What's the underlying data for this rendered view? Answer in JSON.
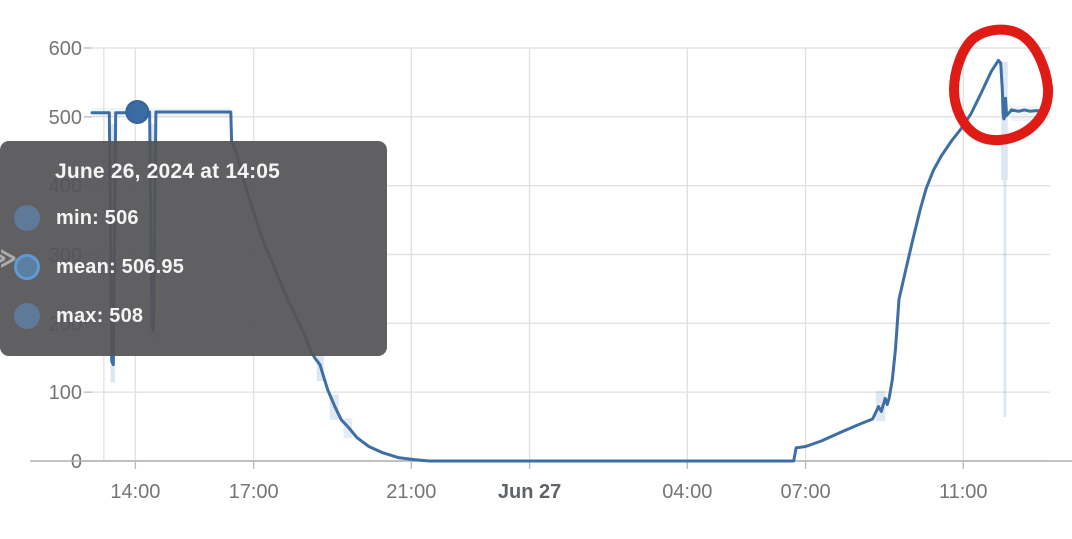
{
  "tooltip": {
    "title": "June 26, 2024 at 14:05",
    "rows": [
      {
        "series": "min",
        "value": "506",
        "text": "min: 506",
        "highlighted": false
      },
      {
        "series": "mean",
        "value": "506.95",
        "text": "mean: 506.95",
        "highlighted": true
      },
      {
        "series": "max",
        "value": "508",
        "text": "max: 508",
        "highlighted": false
      }
    ],
    "background": "#545456",
    "text_color": "#f4f4f4",
    "marker_color": "#5d82a8",
    "highlight_ring_color": "#5f9bd2"
  },
  "side_glyph": "≫",
  "colors": {
    "line": "#3d6fa6",
    "band": "#8fb0d2",
    "gridline": "#e2e2e2",
    "axis_line": "#b0b0b0",
    "tick": "#bdbdbd",
    "label": "#757575",
    "annotation_red": "#df1b16"
  },
  "chart_data": {
    "type": "line",
    "title": "",
    "xlabel": "",
    "ylabel": "",
    "legend_position": "tooltip-only",
    "grid": true,
    "x_axis": {
      "unit": "hours-since-Jun-26-00:00",
      "range_hours": [
        12.9,
        37.2
      ],
      "extra_gridline_t": 13.2,
      "ticks": [
        {
          "t": 14,
          "label": "14:00",
          "bold": false
        },
        {
          "t": 17,
          "label": "17:00",
          "bold": false
        },
        {
          "t": 21,
          "label": "21:00",
          "bold": false
        },
        {
          "t": 24,
          "label": "Jun 27",
          "bold": true
        },
        {
          "t": 28,
          "label": "04:00",
          "bold": false
        },
        {
          "t": 31,
          "label": "07:00",
          "bold": false
        },
        {
          "t": 35,
          "label": "11:00",
          "bold": false
        }
      ]
    },
    "y_axis": {
      "range": [
        0,
        600
      ],
      "tick_step": 100,
      "tick_labels": [
        "0",
        "100",
        "200",
        "300",
        "400",
        "500",
        "600"
      ]
    },
    "series": [
      {
        "name": "mean",
        "color": "#3d6fa6",
        "points": [
          [
            12.9,
            506
          ],
          [
            13.3,
            506
          ],
          [
            13.34,
            506
          ],
          [
            13.4,
            145
          ],
          [
            13.44,
            140
          ],
          [
            13.5,
            506
          ],
          [
            13.8,
            506
          ],
          [
            14.05,
            507
          ],
          [
            14.36,
            507
          ],
          [
            14.42,
            195
          ],
          [
            14.46,
            190
          ],
          [
            14.52,
            507
          ],
          [
            15.0,
            507
          ],
          [
            15.6,
            507
          ],
          [
            16.2,
            507
          ],
          [
            16.38,
            507
          ],
          [
            16.42,
            507
          ],
          [
            16.44,
            464
          ],
          [
            16.55,
            450
          ],
          [
            16.75,
            408
          ],
          [
            17.0,
            362
          ],
          [
            17.25,
            318
          ],
          [
            17.55,
            278
          ],
          [
            17.85,
            236
          ],
          [
            18.1,
            207
          ],
          [
            18.3,
            182
          ],
          [
            18.45,
            160
          ],
          [
            18.55,
            150
          ],
          [
            18.68,
            140
          ],
          [
            18.88,
            103
          ],
          [
            19.07,
            78
          ],
          [
            19.22,
            60
          ],
          [
            19.42,
            48
          ],
          [
            19.62,
            34
          ],
          [
            19.92,
            21
          ],
          [
            20.27,
            12
          ],
          [
            20.67,
            5
          ],
          [
            21.07,
            2
          ],
          [
            21.45,
            0
          ],
          [
            23.0,
            0
          ],
          [
            25.0,
            0
          ],
          [
            27.0,
            0
          ],
          [
            29.0,
            0
          ],
          [
            30.7,
            0
          ],
          [
            30.76,
            19
          ],
          [
            31.0,
            21
          ],
          [
            31.4,
            29
          ],
          [
            31.9,
            42
          ],
          [
            32.35,
            53
          ],
          [
            32.7,
            61
          ],
          [
            32.85,
            79
          ],
          [
            32.92,
            72
          ],
          [
            33.02,
            91
          ],
          [
            33.07,
            82
          ],
          [
            33.12,
            92
          ],
          [
            33.2,
            118
          ],
          [
            33.28,
            163
          ],
          [
            33.37,
            235
          ],
          [
            33.55,
            280
          ],
          [
            33.73,
            324
          ],
          [
            33.91,
            366
          ],
          [
            34.06,
            396
          ],
          [
            34.24,
            422
          ],
          [
            34.44,
            443
          ],
          [
            34.69,
            464
          ],
          [
            34.95,
            483
          ],
          [
            35.2,
            505
          ],
          [
            35.45,
            534
          ],
          [
            35.71,
            566
          ],
          [
            35.89,
            582
          ],
          [
            35.95,
            578
          ],
          [
            35.99,
            540
          ],
          [
            36.01,
            505
          ],
          [
            36.03,
            497
          ],
          [
            36.05,
            500
          ],
          [
            36.07,
            527
          ],
          [
            36.1,
            502
          ],
          [
            36.15,
            505
          ],
          [
            36.22,
            510
          ],
          [
            36.4,
            508
          ],
          [
            36.55,
            510
          ],
          [
            36.7,
            508
          ],
          [
            36.85,
            509
          ],
          [
            37.0,
            508
          ],
          [
            37.15,
            509
          ]
        ]
      }
    ],
    "minmax_band_segments": [
      {
        "t1": 12.9,
        "t2": 16.4,
        "lo": 500,
        "hi": 513,
        "opacity": 0.14
      },
      {
        "t1": 13.37,
        "t2": 13.48,
        "lo": 114,
        "hi": 490,
        "opacity": 0.32
      },
      {
        "t1": 14.39,
        "t2": 14.5,
        "lo": 168,
        "hi": 490,
        "opacity": 0.28
      },
      {
        "t1": 18.6,
        "t2": 18.78,
        "lo": 116,
        "hi": 154,
        "opacity": 0.3
      },
      {
        "t1": 18.93,
        "t2": 19.16,
        "lo": 60,
        "hi": 97,
        "opacity": 0.28
      },
      {
        "t1": 19.28,
        "t2": 19.5,
        "lo": 33,
        "hi": 62,
        "opacity": 0.24
      },
      {
        "t1": 32.78,
        "t2": 33.02,
        "lo": 58,
        "hi": 102,
        "opacity": 0.28
      },
      {
        "t1": 35.96,
        "t2": 36.13,
        "lo": 408,
        "hi": 580,
        "opacity": 0.3
      },
      {
        "t1": 36.02,
        "t2": 36.09,
        "lo": 64,
        "hi": 408,
        "opacity": 0.3
      },
      {
        "t1": 36.2,
        "t2": 37.15,
        "lo": 494,
        "hi": 516,
        "opacity": 0.13
      }
    ],
    "highlight_point": {
      "series": "mean",
      "t": 14.05,
      "value": 507,
      "radius_px": 11
    },
    "annotation": {
      "type": "hand-drawn-circle",
      "color": "#df1b16",
      "stroke_px": 10,
      "note": "red freehand circle around the spike/drop near Jun 27 ~12:00, values ~580 falling to ~505"
    }
  }
}
